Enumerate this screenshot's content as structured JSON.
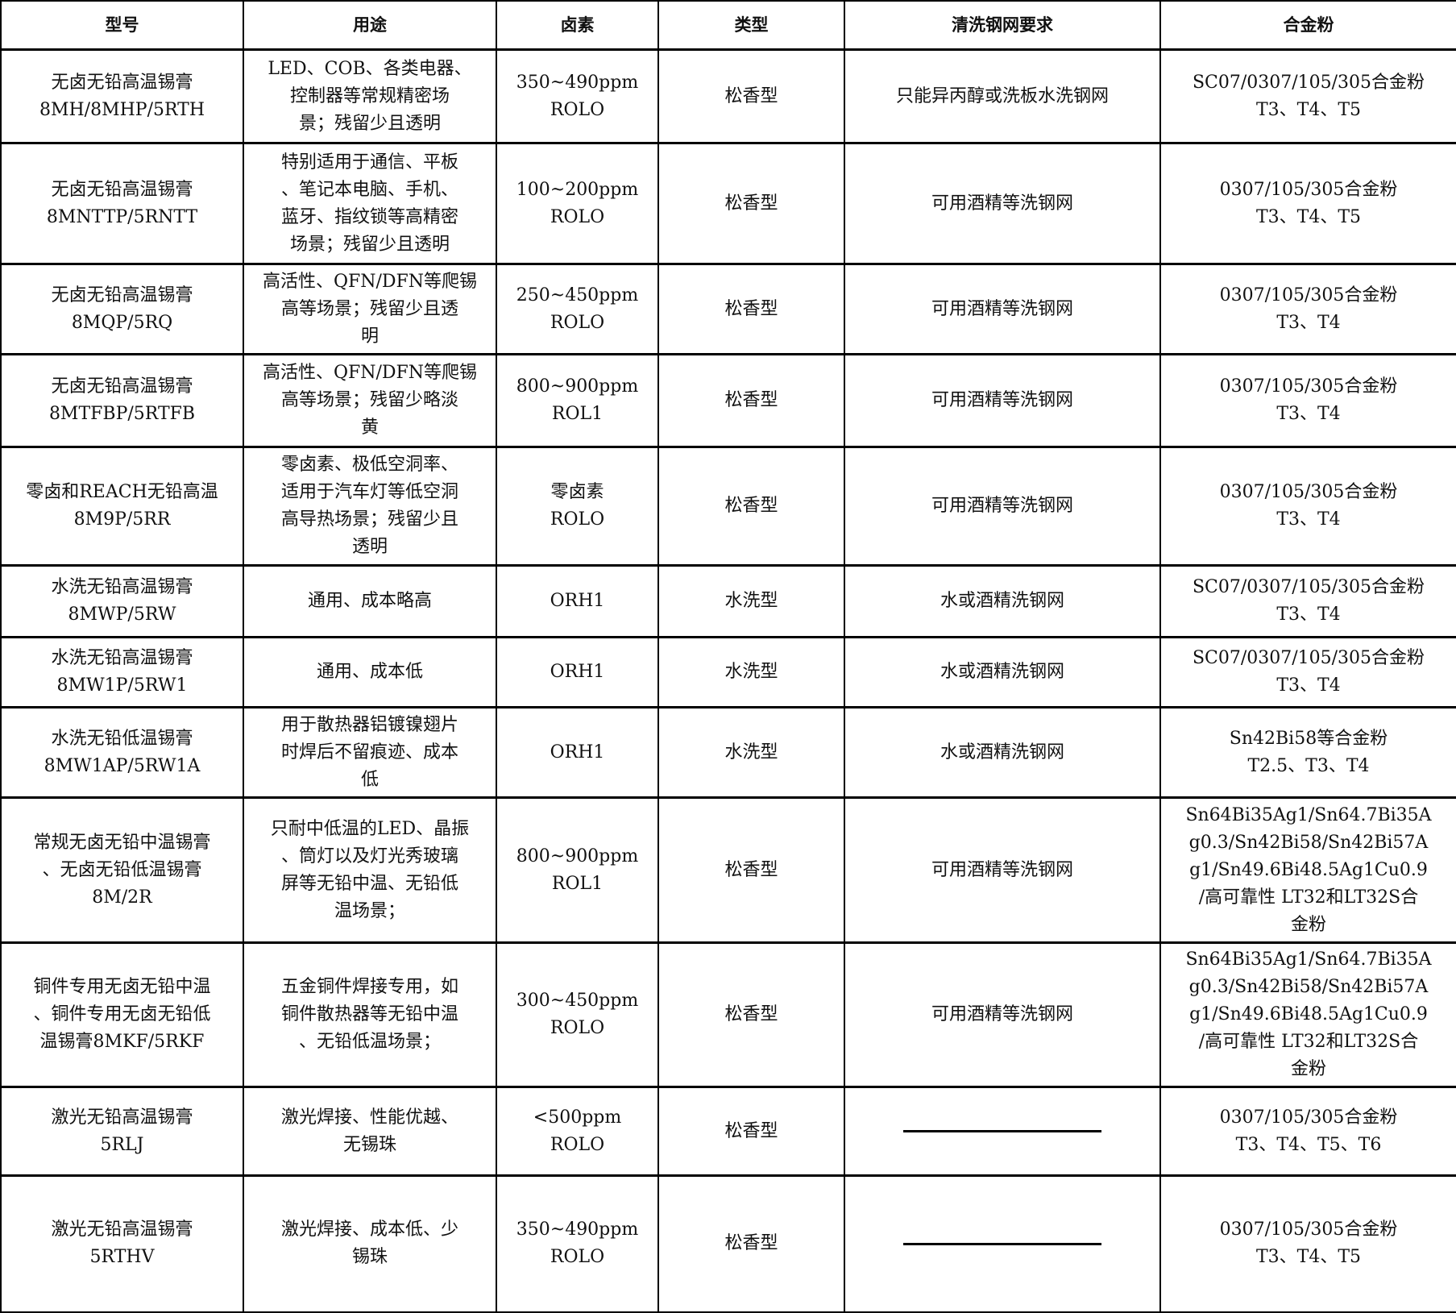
{
  "headers": [
    "型号",
    "用途",
    "卤素",
    "类型",
    "清洗钢网要求",
    "合金粉"
  ],
  "rows": [
    [
      "无卤无铅高温锡膏\n8MH/8MHP/5RTH",
      "LED、COB、各类电器、\n控制器等常规精密场\n景；残留少且透明",
      "350~490ppm\nROLO",
      "松香型",
      "只能异丙醇或洗板水洗钢网",
      "SC07/0307/105/305合金粉\nT3、T4、T5"
    ],
    [
      "无卤无铅高温锡膏\n8MNTTP/5RNTT",
      "特别适用于通信、平板\n、笔记本电脑、手机、\n蓝牙、指纹锁等高精密\n场景；残留少且透明",
      "100~200ppm\nROLO",
      "松香型",
      "可用酒精等洗钢网",
      "0307/105/305合金粉\nT3、T4、T5"
    ],
    [
      "无卤无铅高温锡膏\n8MQP/5RQ",
      "高活性、QFN/DFN等爬锡\n高等场景；残留少且透\n明",
      "250~450ppm\nROLO",
      "松香型",
      "可用酒精等洗钢网",
      "0307/105/305合金粉\nT3、T4"
    ],
    [
      "无卤无铅高温锡膏\n8MTFBP/5RTFB",
      "高活性、QFN/DFN等爬锡\n高等场景；残留少略淡\n黄",
      "800~900ppm\nROL1",
      "松香型",
      "可用酒精等洗钢网",
      "0307/105/305合金粉\nT3、T4"
    ],
    [
      "零卤和REACH无铅高温\n8M9P/5RR",
      "零卤素、极低空洞率、\n适用于汽车灯等低空洞\n高导热场景；残留少且\n透明",
      "零卤素\nROLO",
      "松香型",
      "可用酒精等洗钢网",
      "0307/105/305合金粉\nT3、T4"
    ],
    [
      "水洗无铅高温锡膏\n8MWP/5RW",
      "通用、成本略高",
      "ORH1",
      "水洗型",
      "水或酒精洗钢网",
      "SC07/0307/105/305合金粉\nT3、T4"
    ],
    [
      "水洗无铅高温锡膏\n8MW1P/5RW1",
      "通用、成本低",
      "ORH1",
      "水洗型",
      "水或酒精洗钢网",
      "SC07/0307/105/305合金粉\nT3、T4"
    ],
    [
      "水洗无铅低温锡膏\n8MW1AP/5RW1A",
      "用于散热器铝镀镍翅片\n时焊后不留痕迹、成本\n低",
      "ORH1",
      "水洗型",
      "水或酒精洗钢网",
      "Sn42Bi58等合金粉\nT2.5、T3、T4"
    ],
    [
      "常规无卤无铅中温锡膏\n、无卤无铅低温锡膏\n8M/2R",
      "只耐中低温的LED、晶振\n、筒灯以及灯光秀玻璃\n屏等无铅中温、无铅低\n温场景；",
      "800~900ppm\nROL1",
      "松香型",
      "可用酒精等洗钢网",
      "Sn64Bi35Ag1/Sn64.7Bi35A\ng0.3/Sn42Bi58/Sn42Bi57A\ng1/Sn49.6Bi48.5Ag1Cu0.9\n/高可靠性 LT32和LT32S合\n金粉"
    ],
    [
      "铜件专用无卤无铅中温\n、铜件专用无卤无铅低\n温锡膏8MKF/5RKF",
      "五金铜件焊接专用，如\n铜件散热器等无铅中温\n、无铅低温场景；",
      "300~450ppm\nROLO",
      "松香型",
      "可用酒精等洗钢网",
      "Sn64Bi35Ag1/Sn64.7Bi35A\ng0.3/Sn42Bi58/Sn42Bi57A\ng1/Sn49.6Bi48.5Ag1Cu0.9\n/高可靠性 LT32和LT32S合\n金粉"
    ],
    [
      "激光无铅高温锡膏\n5RLJ",
      "激光焊接、性能优越、\n无锡珠",
      "<500ppm\nROLO",
      "松香型",
      "",
      "0307/105/305合金粉\nT3、T4、T5、T6"
    ],
    [
      "激光无铅高温锡膏\n5RTHV",
      "激光焊接、成本低、少\n锡珠",
      "350~490ppm\nROLO",
      "松香型",
      "",
      "0307/105/305合金粉\nT3、T4、T5"
    ]
  ]
}
